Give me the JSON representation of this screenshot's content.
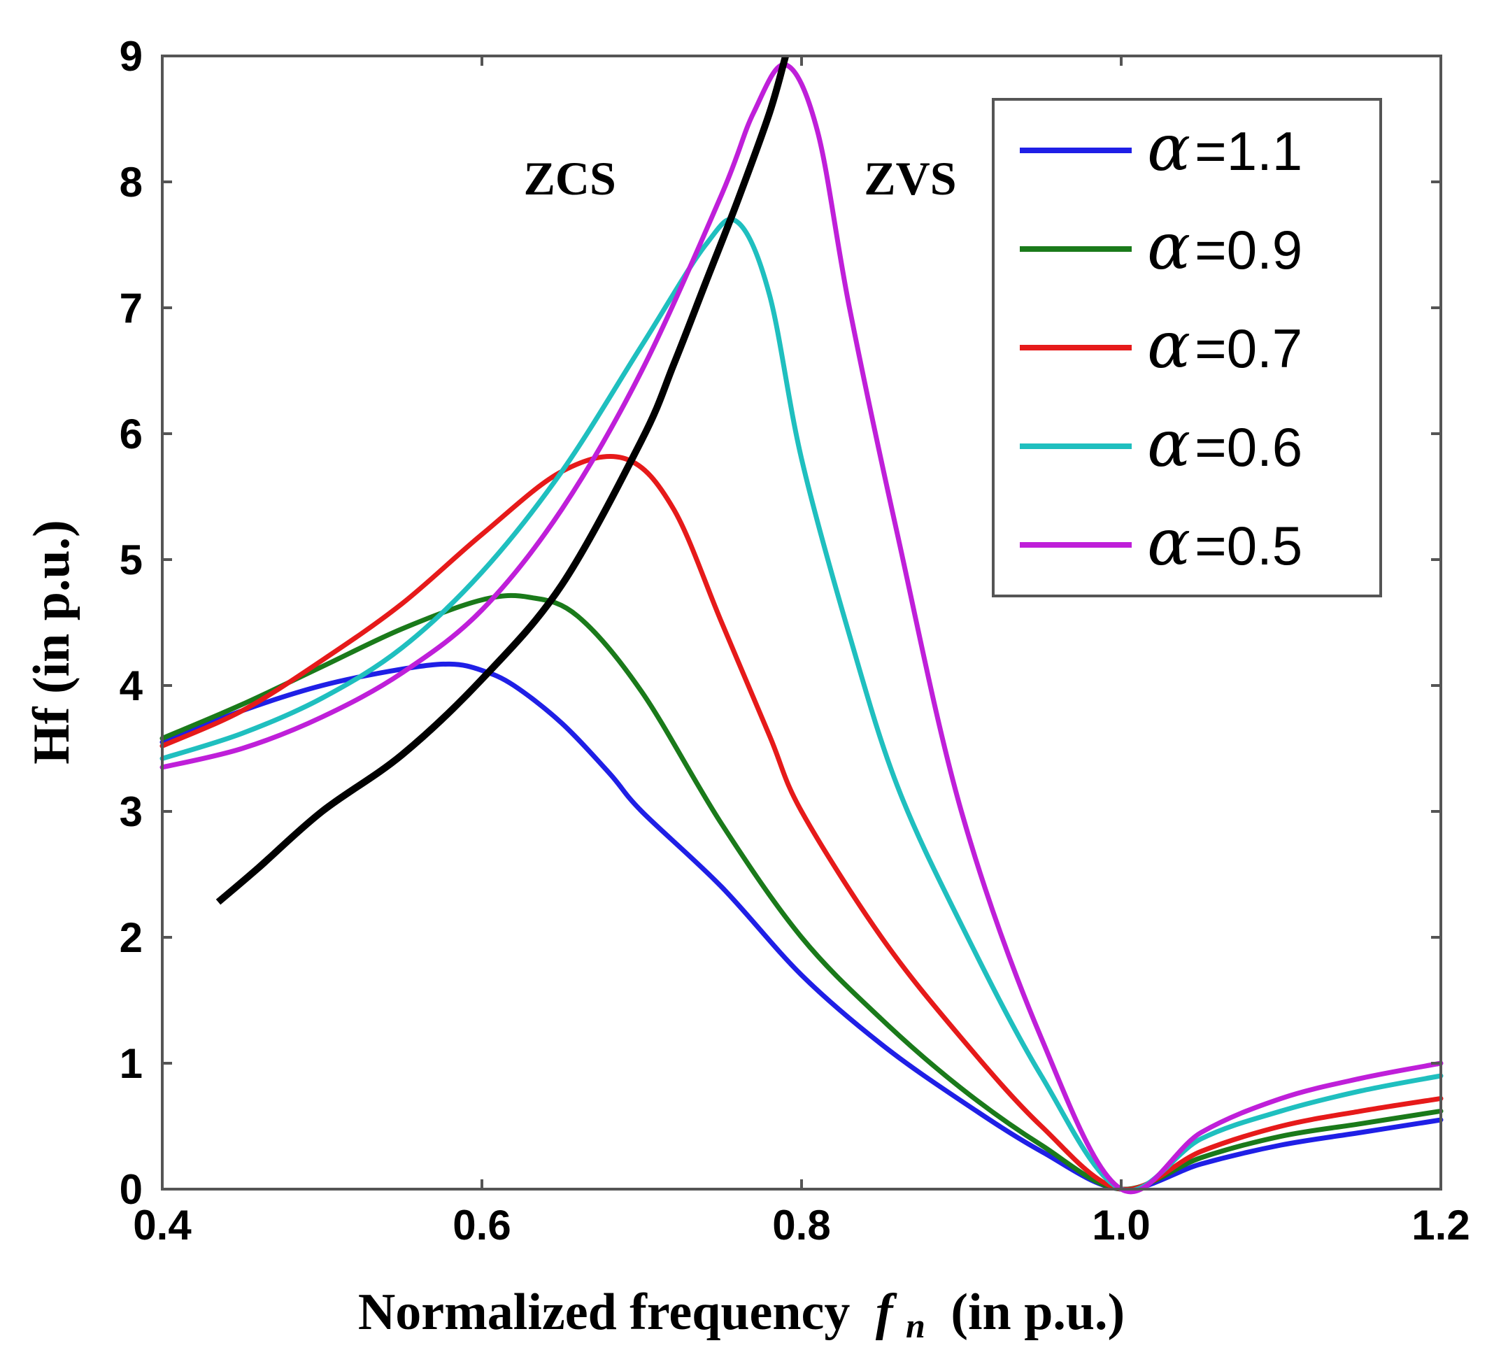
{
  "chart_data": {
    "type": "line",
    "title": "",
    "xlabel": "Normalized frequency",
    "xlabel_symbol": "f",
    "xlabel_subscript": "n",
    "xlabel_suffix": "(in p.u.)",
    "ylabel": "Hf (in p.u.)",
    "xlim": [
      0.4,
      1.2
    ],
    "ylim": [
      0,
      9
    ],
    "x_ticks": [
      0.4,
      0.6,
      0.8,
      1.0,
      1.2
    ],
    "x_tick_labels": [
      "0.4",
      "0.6",
      "0.8",
      "1.0",
      "1.2"
    ],
    "y_ticks": [
      0,
      1,
      2,
      3,
      4,
      5,
      6,
      7,
      8,
      9
    ],
    "y_tick_labels": [
      "0",
      "1",
      "2",
      "3",
      "4",
      "5",
      "6",
      "7",
      "8",
      "9"
    ],
    "grid": false,
    "legend_position": "top-right",
    "annotations": [
      {
        "text": "ZCS",
        "x": 0.655,
        "y": 7.9
      },
      {
        "text": "ZVS",
        "x": 0.868,
        "y": 7.9
      }
    ],
    "series": [
      {
        "name": "α=1.1",
        "alpha_symbol": "α",
        "alpha_value": "=1.1",
        "color": "#1f1fe6",
        "x": [
          0.4,
          0.45,
          0.5,
          0.55,
          0.58,
          0.6,
          0.62,
          0.65,
          0.68,
          0.7,
          0.75,
          0.8,
          0.85,
          0.9,
          0.95,
          1.0,
          1.05,
          1.1,
          1.15,
          1.2
        ],
        "y": [
          3.55,
          3.8,
          4.0,
          4.13,
          4.17,
          4.12,
          4.0,
          3.7,
          3.3,
          3.0,
          2.4,
          1.7,
          1.15,
          0.7,
          0.3,
          0.0,
          0.2,
          0.35,
          0.45,
          0.55
        ]
      },
      {
        "name": "α=0.9",
        "alpha_symbol": "α",
        "alpha_value": "=0.9",
        "color": "#1a7a1a",
        "x": [
          0.4,
          0.45,
          0.5,
          0.55,
          0.6,
          0.63,
          0.66,
          0.7,
          0.75,
          0.8,
          0.85,
          0.9,
          0.95,
          1.0,
          1.05,
          1.1,
          1.15,
          1.2
        ],
        "y": [
          3.58,
          3.85,
          4.15,
          4.45,
          4.68,
          4.7,
          4.55,
          3.95,
          2.9,
          2.0,
          1.35,
          0.8,
          0.35,
          0.0,
          0.25,
          0.42,
          0.52,
          0.62
        ]
      },
      {
        "name": "α=0.7",
        "alpha_symbol": "α",
        "alpha_value": "=0.7",
        "color": "#e61a1a",
        "x": [
          0.4,
          0.45,
          0.5,
          0.55,
          0.6,
          0.65,
          0.69,
          0.72,
          0.75,
          0.78,
          0.8,
          0.85,
          0.9,
          0.95,
          1.0,
          1.05,
          1.1,
          1.15,
          1.2
        ],
        "y": [
          3.52,
          3.8,
          4.2,
          4.65,
          5.2,
          5.7,
          5.8,
          5.4,
          4.5,
          3.6,
          3.0,
          2.0,
          1.2,
          0.5,
          0.0,
          0.3,
          0.5,
          0.62,
          0.72
        ]
      },
      {
        "name": "α=0.6",
        "alpha_symbol": "α",
        "alpha_value": "=0.6",
        "color": "#1fbfbf",
        "x": [
          0.4,
          0.45,
          0.5,
          0.55,
          0.6,
          0.65,
          0.7,
          0.74,
          0.76,
          0.78,
          0.8,
          0.83,
          0.86,
          0.9,
          0.95,
          1.0,
          1.05,
          1.1,
          1.15,
          1.2
        ],
        "y": [
          3.42,
          3.62,
          3.9,
          4.3,
          4.9,
          5.7,
          6.7,
          7.5,
          7.68,
          7.1,
          5.8,
          4.4,
          3.2,
          2.1,
          0.9,
          0.0,
          0.4,
          0.62,
          0.78,
          0.9
        ]
      },
      {
        "name": "α=0.5",
        "alpha_symbol": "α",
        "alpha_value": "=0.5",
        "color": "#bf1fd9",
        "x": [
          0.4,
          0.45,
          0.5,
          0.55,
          0.6,
          0.65,
          0.7,
          0.75,
          0.77,
          0.79,
          0.81,
          0.83,
          0.86,
          0.9,
          0.95,
          1.0,
          1.05,
          1.1,
          1.15,
          1.2
        ],
        "y": [
          3.35,
          3.5,
          3.75,
          4.1,
          4.6,
          5.4,
          6.5,
          7.9,
          8.55,
          8.93,
          8.4,
          7.0,
          5.2,
          3.0,
          1.2,
          0.0,
          0.45,
          0.72,
          0.88,
          1.0
        ]
      }
    ],
    "boundary_curve": {
      "name": "ZCS/ZVS boundary",
      "color": "#000000",
      "x": [
        0.435,
        0.46,
        0.5,
        0.55,
        0.6,
        0.65,
        0.7,
        0.72,
        0.74,
        0.76,
        0.78,
        0.79
      ],
      "y": [
        2.28,
        2.55,
        3.0,
        3.45,
        4.05,
        4.8,
        5.95,
        6.55,
        7.2,
        7.85,
        8.55,
        9.0
      ]
    }
  }
}
